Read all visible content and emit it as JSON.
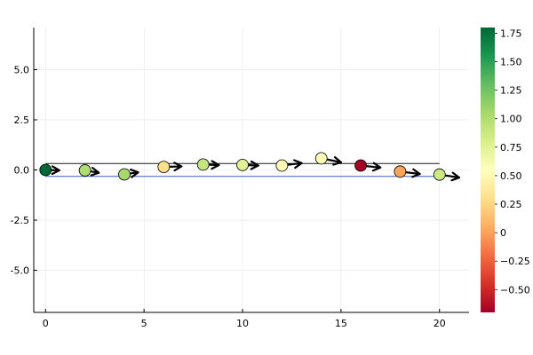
{
  "chart_data": {
    "type": "scatter",
    "title": "",
    "xlabel": "",
    "ylabel": "",
    "xlim": [
      -0.6,
      21.5
    ],
    "ylim": [
      -7.1,
      7.1
    ],
    "x_ticks": [
      0,
      5,
      10,
      15,
      20
    ],
    "x_tick_labels": [
      "0",
      "5",
      "10",
      "15",
      "20"
    ],
    "y_ticks": [
      -5.0,
      -2.5,
      0.0,
      2.5,
      5.0
    ],
    "y_tick_labels": [
      "-5.0",
      "-2.5",
      "0.0",
      "2.5",
      "5.0"
    ],
    "grid": true,
    "legend": "none",
    "points": [
      {
        "x": 0,
        "y": 0.0,
        "c": 1.8
      },
      {
        "x": 2,
        "y": -0.02,
        "c": 1.0
      },
      {
        "x": 4,
        "y": -0.22,
        "c": 1.05
      },
      {
        "x": 6,
        "y": 0.15,
        "c": 0.3
      },
      {
        "x": 8,
        "y": 0.27,
        "c": 0.9
      },
      {
        "x": 10,
        "y": 0.25,
        "c": 0.75
      },
      {
        "x": 12,
        "y": 0.22,
        "c": 0.5
      },
      {
        "x": 14,
        "y": 0.58,
        "c": 0.58
      },
      {
        "x": 16,
        "y": 0.22,
        "c": -0.7
      },
      {
        "x": 18,
        "y": -0.08,
        "c": 0.02
      },
      {
        "x": 20,
        "y": -0.23,
        "c": 0.87
      }
    ],
    "arrows": [
      {
        "x": 0,
        "y": 0.0,
        "dx": 0.7,
        "dy": -0.02
      },
      {
        "x": 2,
        "y": -0.02,
        "dx": 0.7,
        "dy": -0.12
      },
      {
        "x": 4,
        "y": -0.22,
        "dx": 0.7,
        "dy": 0.1
      },
      {
        "x": 6,
        "y": 0.15,
        "dx": 0.9,
        "dy": 0.03
      },
      {
        "x": 8,
        "y": 0.27,
        "dx": 0.8,
        "dy": -0.03
      },
      {
        "x": 10,
        "y": 0.25,
        "dx": 0.8,
        "dy": -0.03
      },
      {
        "x": 12,
        "y": 0.22,
        "dx": 1.0,
        "dy": 0.12
      },
      {
        "x": 14,
        "y": 0.58,
        "dx": 1.0,
        "dy": -0.2
      },
      {
        "x": 16,
        "y": 0.22,
        "dx": 1.0,
        "dy": -0.1
      },
      {
        "x": 18,
        "y": -0.08,
        "dx": 1.0,
        "dy": -0.12
      },
      {
        "x": 20,
        "y": -0.23,
        "dx": 1.0,
        "dy": -0.15
      }
    ],
    "lines": [
      {
        "y": 0.32,
        "x0": 0,
        "x1": 20,
        "color": "#1a1a1a"
      },
      {
        "y": -0.32,
        "x0": 0,
        "x1": 20,
        "color": "#3b5cc4"
      }
    ],
    "colorbar": {
      "colormap": "RdYlGn",
      "min": -0.7,
      "max": 1.8,
      "ticks": [
        -0.5,
        -0.25,
        0,
        0.25,
        0.5,
        0.75,
        1.0,
        1.25,
        1.5,
        1.75
      ],
      "tick_labels": [
        "−0.50",
        "−0.25",
        "0",
        "0.25",
        "0.50",
        "0.75",
        "1.00",
        "1.25",
        "1.50",
        "1.75"
      ]
    },
    "colors": {
      "axis": "#000000",
      "grid": "#e6e6e6",
      "arrow": "#000000",
      "marker_edge": "#000000"
    }
  }
}
